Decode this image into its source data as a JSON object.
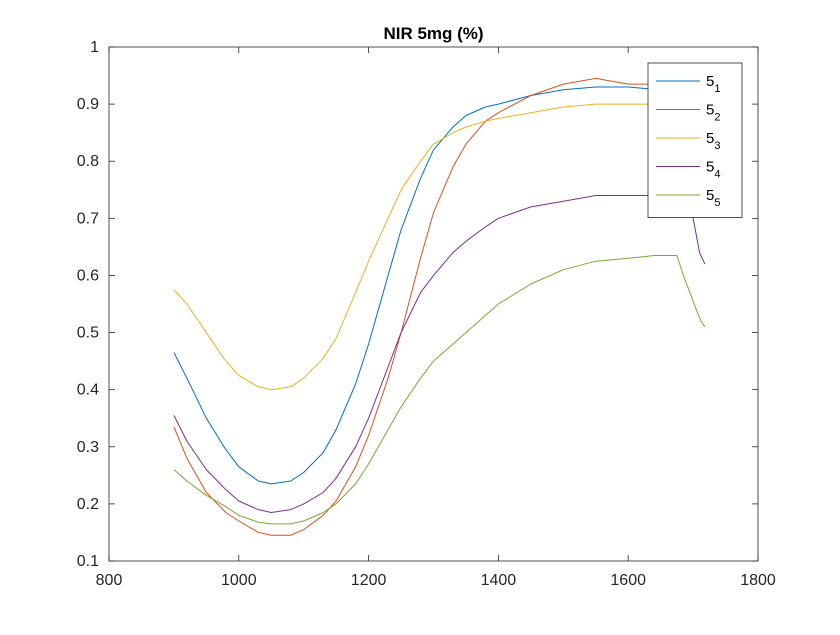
{
  "chart_data": {
    "type": "line",
    "title": "NIR 5mg (%)",
    "xlabel": "",
    "ylabel": "",
    "xlim": [
      800,
      1800
    ],
    "ylim": [
      0.1,
      1
    ],
    "xticks": [
      800,
      1000,
      1200,
      1400,
      1600,
      1800
    ],
    "yticks": [
      0.1,
      0.2,
      0.3,
      0.4,
      0.5,
      0.6,
      0.7,
      0.8,
      0.9,
      1
    ],
    "xtick_labels": [
      "800",
      "1000",
      "1200",
      "1400",
      "1600",
      "1800"
    ],
    "ytick_labels": [
      "0.1",
      "0.2",
      "0.3",
      "0.4",
      "0.5",
      "0.6",
      "0.7",
      "0.8",
      "0.9",
      "1"
    ],
    "grid": false,
    "legend_position": "top-right",
    "series": [
      {
        "name": "5",
        "subscript": "1",
        "color": "#0072BD",
        "x": [
          900,
          920,
          950,
          980,
          1000,
          1030,
          1050,
          1080,
          1100,
          1130,
          1150,
          1180,
          1200,
          1230,
          1250,
          1280,
          1300,
          1330,
          1350,
          1380,
          1400,
          1450,
          1500,
          1550,
          1600,
          1650,
          1670
        ],
        "y": [
          0.465,
          0.42,
          0.35,
          0.295,
          0.265,
          0.24,
          0.235,
          0.24,
          0.255,
          0.29,
          0.33,
          0.41,
          0.48,
          0.6,
          0.68,
          0.77,
          0.82,
          0.86,
          0.88,
          0.895,
          0.9,
          0.915,
          0.925,
          0.93,
          0.93,
          0.925,
          0.93
        ]
      },
      {
        "name": "5",
        "subscript": "2",
        "color": "#D95319",
        "x": [
          900,
          920,
          950,
          980,
          1000,
          1030,
          1050,
          1080,
          1100,
          1130,
          1150,
          1180,
          1200,
          1230,
          1250,
          1280,
          1300,
          1330,
          1350,
          1380,
          1400,
          1450,
          1500,
          1550,
          1600,
          1650,
          1670
        ],
        "y": [
          0.335,
          0.28,
          0.22,
          0.185,
          0.17,
          0.15,
          0.145,
          0.145,
          0.155,
          0.18,
          0.205,
          0.265,
          0.32,
          0.42,
          0.5,
          0.63,
          0.71,
          0.79,
          0.83,
          0.87,
          0.885,
          0.915,
          0.935,
          0.945,
          0.935,
          0.935,
          0.94
        ]
      },
      {
        "name": "5",
        "subscript": "3",
        "color": "#EDB120",
        "x": [
          900,
          920,
          950,
          980,
          1000,
          1030,
          1050,
          1080,
          1100,
          1130,
          1150,
          1180,
          1200,
          1230,
          1250,
          1280,
          1300,
          1330,
          1350,
          1380,
          1400,
          1450,
          1500,
          1550,
          1600,
          1650,
          1670
        ],
        "y": [
          0.575,
          0.55,
          0.5,
          0.45,
          0.425,
          0.405,
          0.4,
          0.405,
          0.42,
          0.455,
          0.49,
          0.57,
          0.625,
          0.7,
          0.75,
          0.8,
          0.83,
          0.85,
          0.86,
          0.87,
          0.875,
          0.885,
          0.895,
          0.9,
          0.9,
          0.9,
          0.905
        ]
      },
      {
        "name": "5",
        "subscript": "4",
        "color": "#7E2F8E",
        "x": [
          900,
          920,
          950,
          980,
          1000,
          1030,
          1050,
          1080,
          1100,
          1130,
          1150,
          1180,
          1200,
          1230,
          1250,
          1280,
          1300,
          1330,
          1350,
          1380,
          1400,
          1450,
          1500,
          1550,
          1600,
          1640,
          1660,
          1680,
          1690,
          1700,
          1710,
          1718
        ],
        "y": [
          0.355,
          0.31,
          0.26,
          0.225,
          0.205,
          0.19,
          0.185,
          0.19,
          0.2,
          0.22,
          0.245,
          0.3,
          0.35,
          0.44,
          0.5,
          0.57,
          0.6,
          0.64,
          0.66,
          0.685,
          0.7,
          0.72,
          0.73,
          0.74,
          0.74,
          0.74,
          0.74,
          0.745,
          0.74,
          0.7,
          0.64,
          0.62
        ]
      },
      {
        "name": "5",
        "subscript": "5",
        "color": "#77AC30",
        "x": [
          900,
          920,
          950,
          980,
          1000,
          1030,
          1050,
          1080,
          1100,
          1130,
          1150,
          1180,
          1200,
          1230,
          1250,
          1280,
          1300,
          1330,
          1350,
          1380,
          1400,
          1450,
          1500,
          1550,
          1600,
          1640,
          1660,
          1675,
          1685,
          1695,
          1705,
          1712,
          1718
        ],
        "y": [
          0.26,
          0.24,
          0.215,
          0.195,
          0.18,
          0.168,
          0.165,
          0.165,
          0.17,
          0.185,
          0.2,
          0.235,
          0.27,
          0.33,
          0.37,
          0.42,
          0.45,
          0.48,
          0.5,
          0.53,
          0.55,
          0.585,
          0.61,
          0.625,
          0.63,
          0.635,
          0.635,
          0.635,
          0.6,
          0.57,
          0.54,
          0.52,
          0.51
        ]
      }
    ]
  }
}
